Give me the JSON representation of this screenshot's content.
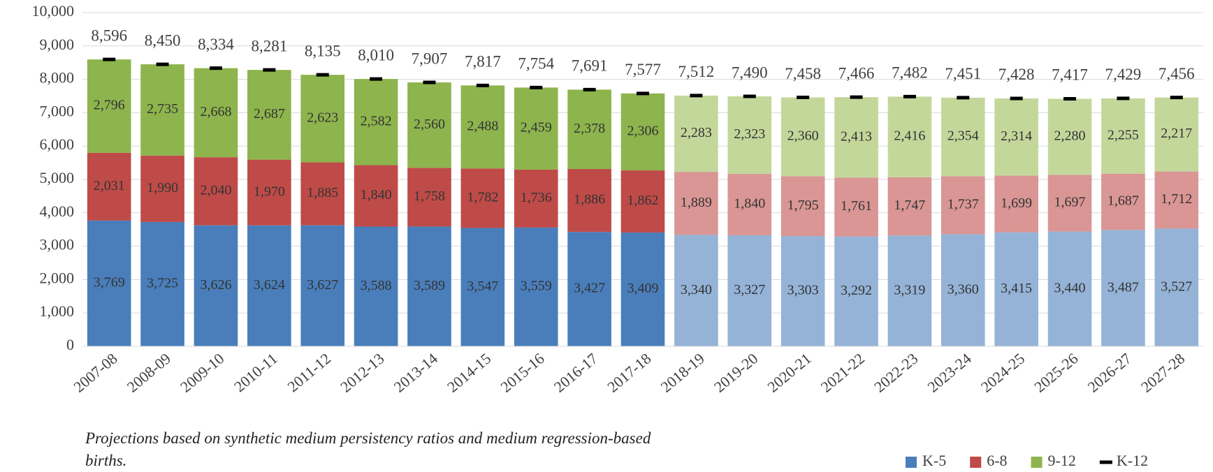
{
  "chart_data": {
    "type": "bar",
    "stacked": true,
    "categories": [
      "2007-08",
      "2008-09",
      "2009-10",
      "2010-11",
      "2011-12",
      "2012-13",
      "2013-14",
      "2014-15",
      "2015-16",
      "2016-17",
      "2017-18",
      "2018-19",
      "2019-20",
      "2020-21",
      "2021-22",
      "2022-23",
      "2023-24",
      "2024-25",
      "2025-26",
      "2026-27",
      "2027-28"
    ],
    "projection_start": "2018-19",
    "series": [
      {
        "name": "K-5",
        "type": "bar",
        "color": "#4a7ebb",
        "projection_color": "#95b3d7",
        "values": [
          3769,
          3725,
          3626,
          3624,
          3627,
          3588,
          3589,
          3547,
          3559,
          3427,
          3409,
          3340,
          3327,
          3303,
          3292,
          3319,
          3360,
          3415,
          3440,
          3487,
          3527
        ],
        "value_labels": [
          "3,769",
          "3,725",
          "3,626",
          "3,624",
          "3,627",
          "3,588",
          "3,589",
          "3,547",
          "3,559",
          "3,427",
          "3,409",
          "3,340",
          "3,327",
          "3,303",
          "3,292",
          "3,319",
          "3,360",
          "3,415",
          "3,440",
          "3,487",
          "3,527"
        ]
      },
      {
        "name": "6-8",
        "type": "bar",
        "color": "#be4b48",
        "projection_color": "#d99694",
        "values": [
          2031,
          1990,
          2040,
          1970,
          1885,
          1840,
          1758,
          1782,
          1736,
          1886,
          1862,
          1889,
          1840,
          1795,
          1761,
          1747,
          1737,
          1699,
          1697,
          1687,
          1712
        ],
        "value_labels": [
          "2,031",
          "1,990",
          "2,040",
          "1,970",
          "1,885",
          "1,840",
          "1,758",
          "1,782",
          "1,736",
          "1,886",
          "1,862",
          "1,889",
          "1,840",
          "1,795",
          "1,761",
          "1,747",
          "1,737",
          "1,699",
          "1,697",
          "1,687",
          "1,712"
        ]
      },
      {
        "name": "9-12",
        "type": "bar",
        "color": "#8eb44d",
        "projection_color": "#c4d79b",
        "values": [
          2796,
          2735,
          2668,
          2687,
          2623,
          2582,
          2560,
          2488,
          2459,
          2378,
          2306,
          2283,
          2323,
          2360,
          2413,
          2416,
          2354,
          2314,
          2280,
          2255,
          2217
        ],
        "value_labels": [
          "2,796",
          "2,735",
          "2,668",
          "2,687",
          "2,623",
          "2,582",
          "2,560",
          "2,488",
          "2,459",
          "2,378",
          "2,306",
          "2,283",
          "2,323",
          "2,360",
          "2,413",
          "2,416",
          "2,354",
          "2,314",
          "2,280",
          "2,255",
          "2,217"
        ]
      },
      {
        "name": "K-12",
        "type": "marker",
        "color": "#000000",
        "values": [
          8596,
          8450,
          8334,
          8281,
          8135,
          8010,
          7907,
          7817,
          7754,
          7691,
          7577,
          7512,
          7490,
          7458,
          7466,
          7482,
          7451,
          7428,
          7417,
          7429,
          7456
        ],
        "value_labels": [
          "8,596",
          "8,450",
          "8,334",
          "8,281",
          "8,135",
          "8,010",
          "7,907",
          "7,817",
          "7,754",
          "7,691",
          "7,577",
          "7,512",
          "7,490",
          "7,458",
          "7,466",
          "7,482",
          "7,451",
          "7,428",
          "7,417",
          "7,429",
          "7,456"
        ]
      }
    ],
    "ylim": [
      0,
      10000
    ],
    "yticks": [
      0,
      {
        "value": 1000,
        "label": "1,000"
      },
      {
        "value": 2000,
        "label": "2,000"
      },
      {
        "value": 3000,
        "label": "3,000"
      },
      {
        "value": 4000,
        "label": "4,000"
      },
      {
        "value": 5000,
        "label": "5,000"
      },
      {
        "value": 6000,
        "label": "6,000"
      },
      {
        "value": 7000,
        "label": "7,000"
      },
      {
        "value": 8000,
        "label": "8,000"
      },
      {
        "value": 9000,
        "label": "9,000"
      },
      {
        "value": 10000,
        "label": "10,000"
      }
    ],
    "grid": true,
    "legend": "bottom-right",
    "caption": "Projections based on synthetic medium persistency ratios and medium regression-based births."
  }
}
